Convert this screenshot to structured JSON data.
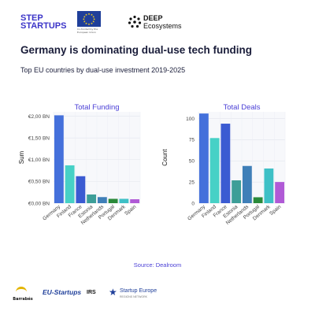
{
  "header": {
    "logo_step_line1": "STEP",
    "logo_step_line2": "STARTUPS",
    "eu_caption": "Co-funded by the European Union",
    "deep_line1": "DEEP",
    "deep_line2": "Ecosystems"
  },
  "title": "Germany is dominating dual-use tech funding",
  "subtitle": "Top EU countries by dual-use investment 2019-2025",
  "source": "Source:  Dealroom",
  "footer": {
    "barrabes": "Barrabés",
    "eustartups": "EU-Startups",
    "irs": "IRS",
    "ser_line1": "Startup Europe",
    "ser_line2": "REGIONS NETWORK"
  },
  "chart_data": [
    {
      "type": "bar",
      "title": "Total  Funding",
      "xlabel": "",
      "ylabel": "Sum",
      "categories": [
        "Germany",
        "Finland",
        "France",
        "Estonia",
        "Netherlands",
        "Portugal",
        "Denmark",
        "Spain"
      ],
      "values": [
        2.02,
        0.87,
        0.62,
        0.2,
        0.14,
        0.1,
        0.1,
        0.09
      ],
      "colors": [
        "#4470db",
        "#47d1c6",
        "#3b5bd2",
        "#3d9e98",
        "#3f7fb8",
        "#2a8a3a",
        "#3ec0c6",
        "#b05ad6"
      ],
      "ylim": [
        0,
        2.1
      ],
      "yticks": [
        0,
        0.5,
        1.0,
        1.5,
        2.0
      ],
      "yticklabels": [
        "€0,00 BN",
        "€0,50 BN",
        "€1,00 BN",
        "€1,50 BN",
        "€2,00 BN"
      ],
      "grid": true
    },
    {
      "type": "bar",
      "title": "Total  Deals",
      "xlabel": "",
      "ylabel": "Count",
      "categories": [
        "Germany",
        "Finland",
        "France",
        "Estonia",
        "Netherlands",
        "Portugal",
        "Denmark",
        "Spain"
      ],
      "values": [
        106,
        77,
        94,
        27,
        44,
        7,
        41,
        25
      ],
      "colors": [
        "#4470db",
        "#47d1c6",
        "#3b5bd2",
        "#3d9e98",
        "#3f7fb8",
        "#2a8a3a",
        "#3ec0c6",
        "#b05ad6"
      ],
      "ylim": [
        0,
        108
      ],
      "yticks": [
        0,
        25,
        50,
        75,
        100
      ],
      "yticklabels": [
        "0",
        "25",
        "50",
        "75",
        "100"
      ],
      "grid": true
    }
  ]
}
